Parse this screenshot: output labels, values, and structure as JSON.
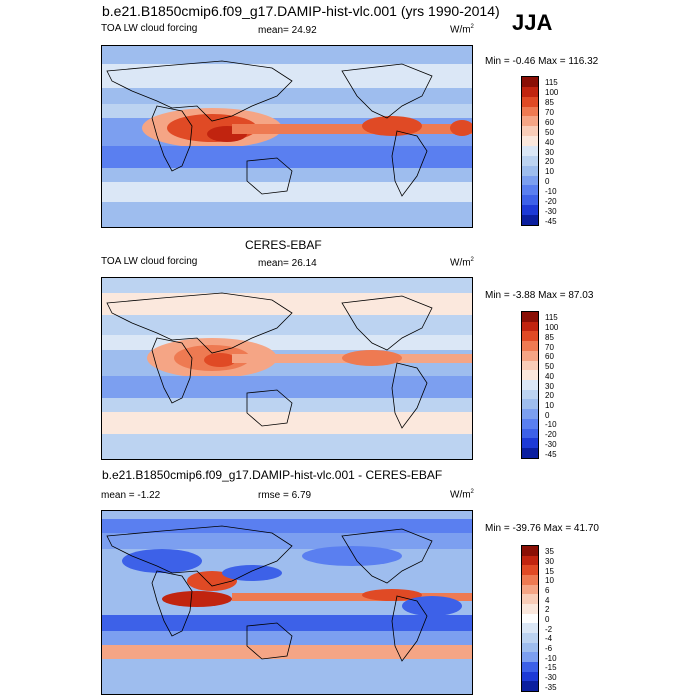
{
  "main_title": "b.e21.B1850cmip6.f09_g17.DAMIP-hist-vlc.001 (yrs 1990-2014)",
  "season": "JJA",
  "chart_data": [
    {
      "type": "heatmap",
      "title": "b.e21.B1850cmip6.f09_g17.DAMIP-hist-vlc.001 (yrs 1990-2014)",
      "variable": "TOA LW cloud forcing",
      "stat_label": "mean=",
      "stat_value": "24.92",
      "units": "W/m",
      "units_sup": "2",
      "min_max_label": "Min =  -0.46 Max = 116.32",
      "min": -0.46,
      "max": 116.32,
      "colorbar_levels": [
        "115",
        "100",
        "85",
        "70",
        "60",
        "50",
        "40",
        "30",
        "20",
        "10",
        "0",
        "-10",
        "-20",
        "-30",
        "-45"
      ],
      "colorbar_colors": [
        "#8a0f05",
        "#c1240f",
        "#e04a25",
        "#ee7a52",
        "#f5a585",
        "#f9cdb8",
        "#fbe8dd",
        "#dbe7f6",
        "#bcd3f1",
        "#9ebdee",
        "#7c9ff0",
        "#5a7ff0",
        "#3d61e8",
        "#1d3ad6",
        "#0b1f9f"
      ]
    },
    {
      "type": "heatmap",
      "title": "CERES-EBAF",
      "variable": "TOA LW cloud forcing",
      "stat_label": "mean=",
      "stat_value": "26.14",
      "units": "W/m",
      "units_sup": "2",
      "min_max_label": "Min =  -3.88 Max =  87.03",
      "min": -3.88,
      "max": 87.03,
      "colorbar_levels": [
        "115",
        "100",
        "85",
        "70",
        "60",
        "50",
        "40",
        "30",
        "20",
        "10",
        "0",
        "-10",
        "-20",
        "-30",
        "-45"
      ],
      "colorbar_colors": [
        "#8a0f05",
        "#c1240f",
        "#e04a25",
        "#ee7a52",
        "#f5a585",
        "#f9cdb8",
        "#fbe8dd",
        "#dbe7f6",
        "#bcd3f1",
        "#9ebdee",
        "#7c9ff0",
        "#5a7ff0",
        "#3d61e8",
        "#1d3ad6",
        "#0b1f9f"
      ]
    },
    {
      "type": "heatmap",
      "title": "b.e21.B1850cmip6.f09_g17.DAMIP-hist-vlc.001 - CERES-EBAF",
      "stat_label": "mean =",
      "stat_value": "-1.22",
      "stat2_label": "rmse =",
      "stat2_value": "6.79",
      "units": "W/m",
      "units_sup": "2",
      "min_max_label": "Min = -39.76 Max =  41.70",
      "min": -39.76,
      "max": 41.7,
      "colorbar_levels": [
        "35",
        "30",
        "15",
        "10",
        "6",
        "4",
        "2",
        "0",
        "-2",
        "-4",
        "-6",
        "-10",
        "-15",
        "-30",
        "-35"
      ],
      "colorbar_colors": [
        "#8a0f05",
        "#c1240f",
        "#e04a25",
        "#ee7a52",
        "#f5a585",
        "#f9cdb8",
        "#fbe8dd",
        "#ffffff",
        "#dbe7f6",
        "#bcd3f1",
        "#9ebdee",
        "#7c9ff0",
        "#3d61e8",
        "#1d3ad6",
        "#0b1f9f"
      ]
    }
  ]
}
